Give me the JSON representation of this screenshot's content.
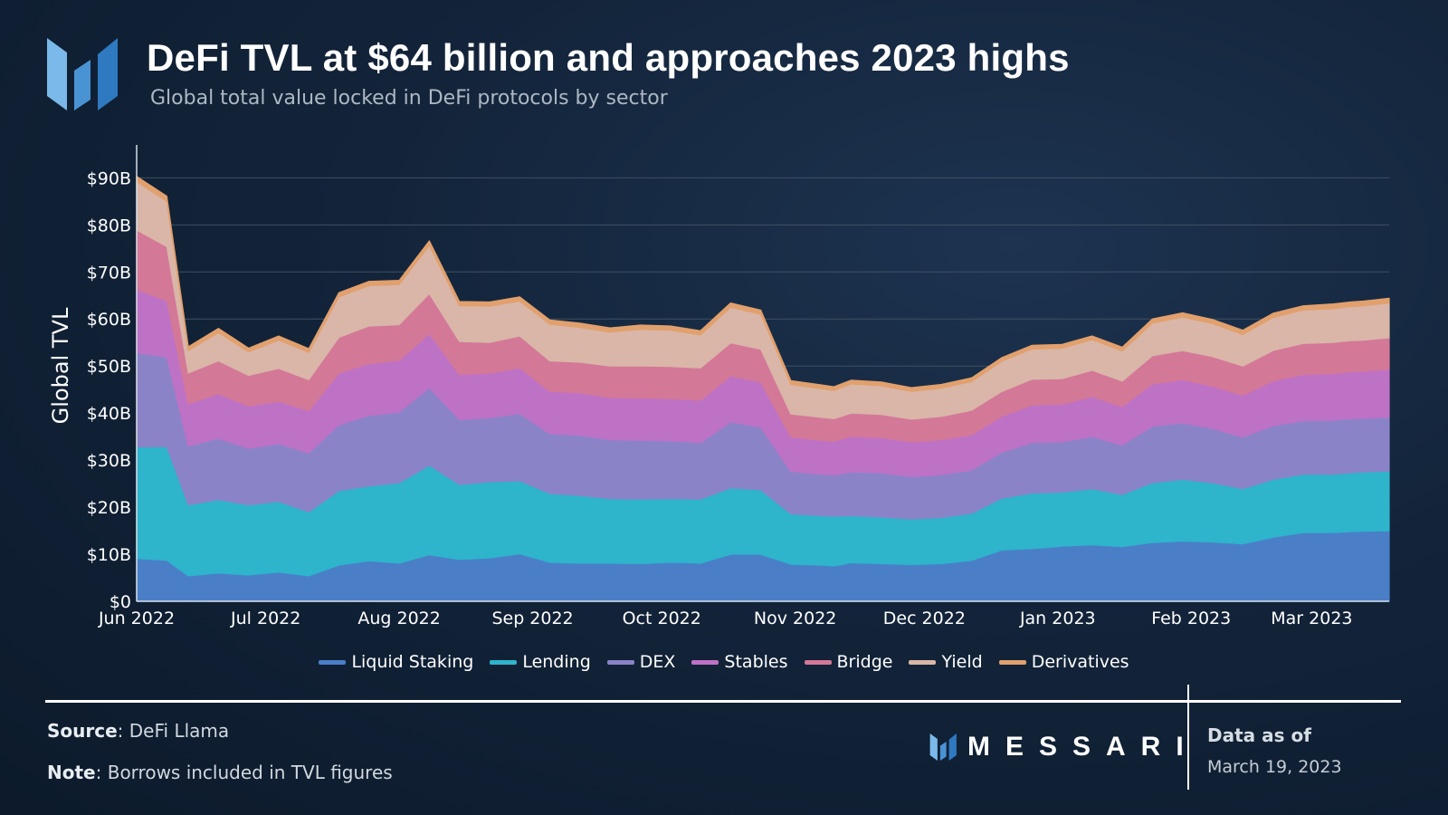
{
  "header": {
    "title": "DeFi TVL at $64 billion and approaches 2023 highs",
    "subtitle": "Global total value locked in DeFi protocols by sector"
  },
  "footer": {
    "source_label": "Source",
    "source_value": "DeFi Llama",
    "note_label": "Note",
    "note_value": "Borrows included in TVL figures",
    "brand": "MESSARI",
    "asof_label": "Data as of",
    "asof_date": "March 19, 2023"
  },
  "colors": {
    "grid": "#3f5063",
    "axis": "#d8dee6"
  },
  "chart_data": {
    "type": "area",
    "stacked": true,
    "title": "DeFi TVL at $64 billion and approaches 2023 highs",
    "ylabel": "Global TVL",
    "xlabel": "",
    "ylim": [
      0,
      97
    ],
    "y_ticks": [
      0,
      10,
      20,
      30,
      40,
      50,
      60,
      70,
      80,
      90
    ],
    "y_tick_labels": [
      "$0",
      "$10B",
      "$20B",
      "$30B",
      "$40B",
      "$50B",
      "$60B",
      "$70B",
      "$80B",
      "$90B"
    ],
    "x_tick_labels": [
      "Jun 2022",
      "Jul 2022",
      "Aug 2022",
      "Sep 2022",
      "Oct 2022",
      "Nov 2022",
      "Dec 2022",
      "Jan 2023",
      "Feb 2023",
      "Mar 2023"
    ],
    "x_tick_dates": [
      "2022-06-01",
      "2022-07-01",
      "2022-08-01",
      "2022-09-01",
      "2022-10-01",
      "2022-11-01",
      "2022-12-01",
      "2023-01-01",
      "2023-02-01",
      "2023-03-01"
    ],
    "legend": "bottom-center",
    "grid": true,
    "x": [
      "2022-06-01",
      "2022-06-08",
      "2022-06-13",
      "2022-06-20",
      "2022-06-27",
      "2022-07-04",
      "2022-07-11",
      "2022-07-18",
      "2022-07-25",
      "2022-08-01",
      "2022-08-08",
      "2022-08-15",
      "2022-08-22",
      "2022-08-29",
      "2022-09-05",
      "2022-09-12",
      "2022-09-19",
      "2022-09-26",
      "2022-10-03",
      "2022-10-10",
      "2022-10-17",
      "2022-10-24",
      "2022-10-31",
      "2022-11-07",
      "2022-11-10",
      "2022-11-14",
      "2022-11-21",
      "2022-11-28",
      "2022-12-05",
      "2022-12-12",
      "2022-12-19",
      "2022-12-26",
      "2023-01-02",
      "2023-01-09",
      "2023-01-16",
      "2023-01-23",
      "2023-01-30",
      "2023-02-06",
      "2023-02-13",
      "2023-02-20",
      "2023-02-27",
      "2023-03-06",
      "2023-03-10",
      "2023-03-13",
      "2023-03-19"
    ],
    "series": [
      {
        "name": "Liquid Staking",
        "color": "#4a7fc8",
        "values": [
          9.1,
          8.7,
          5.4,
          6.0,
          5.6,
          6.2,
          5.4,
          7.7,
          8.6,
          8.1,
          9.9,
          8.9,
          9.2,
          10.1,
          8.3,
          8.1,
          8.1,
          8.0,
          8.3,
          8.1,
          10.0,
          10.0,
          7.9,
          7.7,
          7.5,
          8.2,
          8.0,
          7.8,
          8.0,
          8.7,
          10.9,
          11.2,
          11.7,
          12.0,
          11.6,
          12.5,
          12.8,
          12.6,
          12.2,
          13.6,
          14.6,
          14.6,
          14.8,
          14.9,
          15.0
        ]
      },
      {
        "name": "Lending",
        "color": "#2eb4cb",
        "values": [
          23.7,
          24.2,
          15.1,
          15.6,
          14.9,
          15.0,
          13.6,
          15.8,
          15.9,
          17.1,
          19.0,
          15.9,
          16.2,
          15.5,
          14.6,
          14.4,
          13.7,
          13.7,
          13.5,
          13.6,
          14.1,
          13.7,
          10.7,
          10.5,
          10.6,
          10.0,
          9.9,
          9.7,
          9.8,
          10.0,
          11.0,
          11.8,
          11.5,
          11.9,
          11.1,
          12.7,
          13.1,
          12.6,
          11.7,
          12.3,
          12.4,
          12.4,
          12.5,
          12.6,
          12.7
        ]
      },
      {
        "name": "DEX",
        "color": "#8a83c8",
        "values": [
          20.0,
          19.0,
          12.5,
          13.0,
          12.0,
          12.3,
          12.5,
          14.0,
          15.0,
          15.0,
          16.5,
          13.8,
          13.6,
          14.3,
          12.7,
          12.8,
          12.5,
          12.5,
          12.3,
          12.0,
          14.0,
          13.3,
          9.0,
          8.8,
          8.7,
          9.3,
          9.4,
          9.0,
          9.1,
          9.2,
          9.8,
          10.7,
          10.7,
          11.1,
          10.5,
          12.0,
          12.0,
          11.5,
          11.0,
          11.4,
          11.4,
          11.5,
          11.5,
          11.4,
          11.4
        ]
      },
      {
        "name": "Stables",
        "color": "#bd72c5",
        "values": [
          13.5,
          12.0,
          9.0,
          9.5,
          9.0,
          9.0,
          9.0,
          11.0,
          11.0,
          11.0,
          11.5,
          9.6,
          9.5,
          9.7,
          9.0,
          9.0,
          9.0,
          9.0,
          9.0,
          9.0,
          9.8,
          9.6,
          7.3,
          7.2,
          7.2,
          7.5,
          7.5,
          7.4,
          7.4,
          7.5,
          7.6,
          8.0,
          8.0,
          8.5,
          8.2,
          9.0,
          9.2,
          9.0,
          8.9,
          9.5,
          9.8,
          9.9,
          10.0,
          10.0,
          10.2
        ]
      },
      {
        "name": "Bridge",
        "color": "#d47898",
        "values": [
          12.6,
          11.5,
          6.5,
          7.0,
          6.5,
          7.0,
          6.6,
          7.6,
          8.0,
          7.6,
          8.5,
          7.0,
          6.5,
          6.8,
          6.5,
          6.5,
          6.7,
          6.8,
          6.8,
          6.9,
          7.0,
          7.0,
          4.9,
          4.9,
          4.8,
          5.0,
          4.9,
          4.8,
          5.0,
          5.2,
          5.3,
          5.5,
          5.4,
          5.6,
          5.4,
          6.0,
          6.2,
          6.3,
          6.2,
          6.5,
          6.6,
          6.6,
          6.6,
          6.6,
          6.7
        ]
      },
      {
        "name": "Yield",
        "color": "#d9b6a8",
        "values": [
          10.3,
          9.6,
          4.8,
          6.0,
          5.0,
          6.0,
          5.8,
          8.6,
          8.6,
          8.5,
          10.2,
          7.6,
          7.7,
          7.4,
          7.8,
          7.4,
          7.2,
          7.8,
          7.7,
          7.0,
          7.6,
          7.4,
          6.3,
          6.1,
          6.0,
          6.2,
          6.1,
          5.9,
          6.0,
          6.1,
          6.4,
          6.4,
          6.5,
          6.5,
          6.4,
          6.9,
          7.1,
          7.0,
          6.7,
          7.0,
          7.1,
          7.2,
          7.2,
          7.3,
          7.4
        ]
      },
      {
        "name": "Derivatives",
        "color": "#e1a06d",
        "values": [
          1.1,
          1.1,
          0.8,
          0.9,
          0.8,
          0.9,
          0.8,
          0.9,
          0.9,
          0.9,
          1.0,
          0.9,
          0.9,
          0.9,
          0.9,
          0.9,
          0.9,
          0.9,
          0.9,
          0.9,
          0.9,
          0.9,
          0.8,
          0.8,
          0.8,
          0.8,
          0.8,
          0.8,
          0.8,
          0.8,
          0.8,
          0.8,
          0.8,
          0.8,
          0.8,
          0.9,
          0.9,
          0.9,
          0.9,
          0.9,
          0.9,
          1.0,
          1.0,
          1.0,
          1.0
        ]
      }
    ]
  }
}
